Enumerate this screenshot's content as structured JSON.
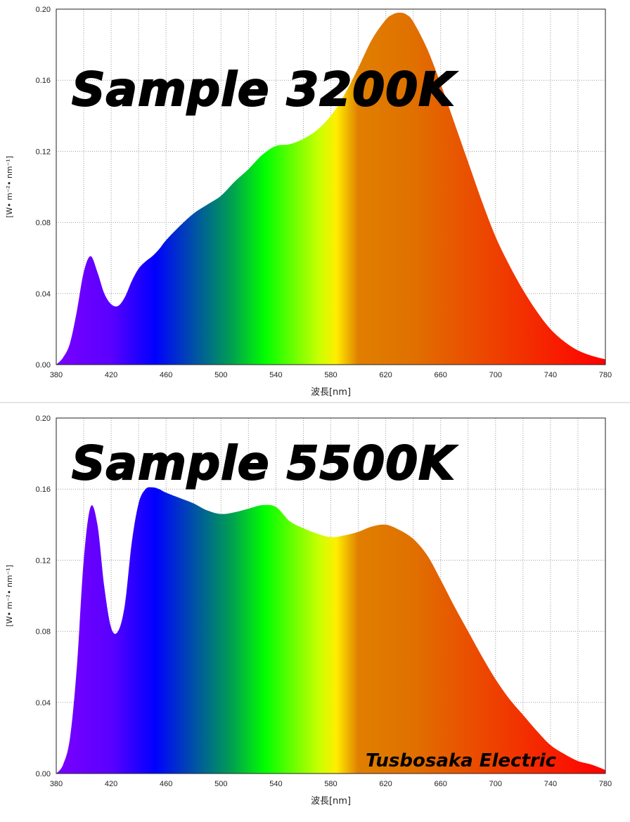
{
  "chart_data": [
    {
      "type": "area",
      "title": "Sample 3200K",
      "xlabel": "波長[nm]",
      "ylabel": "[W• m⁻²• nm⁻¹]",
      "xlim": [
        380,
        780
      ],
      "ylim": [
        0,
        0.2
      ],
      "x_ticks": [
        "380",
        "420",
        "460",
        "500",
        "540",
        "580",
        "620",
        "660",
        "700",
        "740",
        "780"
      ],
      "y_ticks": [
        "0.00",
        "0.04",
        "0.08",
        "0.12",
        "0.16",
        "0.20"
      ],
      "grid": true,
      "fill": "visible-spectrum-gradient",
      "x": [
        380,
        385,
        390,
        395,
        400,
        405,
        410,
        415,
        420,
        425,
        430,
        435,
        440,
        445,
        450,
        455,
        460,
        470,
        480,
        490,
        500,
        510,
        520,
        530,
        540,
        550,
        560,
        570,
        580,
        590,
        600,
        610,
        620,
        625,
        630,
        635,
        640,
        650,
        660,
        670,
        680,
        690,
        700,
        710,
        720,
        730,
        740,
        750,
        760,
        770,
        780
      ],
      "values": [
        0.0,
        0.004,
        0.012,
        0.03,
        0.052,
        0.061,
        0.052,
        0.04,
        0.034,
        0.033,
        0.038,
        0.047,
        0.054,
        0.058,
        0.061,
        0.065,
        0.07,
        0.078,
        0.085,
        0.09,
        0.095,
        0.103,
        0.11,
        0.118,
        0.123,
        0.124,
        0.127,
        0.132,
        0.14,
        0.152,
        0.167,
        0.183,
        0.194,
        0.197,
        0.198,
        0.197,
        0.193,
        0.178,
        0.158,
        0.136,
        0.114,
        0.092,
        0.072,
        0.056,
        0.042,
        0.03,
        0.02,
        0.013,
        0.008,
        0.005,
        0.003
      ]
    },
    {
      "type": "area",
      "title": "Sample 5500K",
      "xlabel": "波長[nm]",
      "ylabel": "[W• m⁻²• nm⁻¹]",
      "xlim": [
        380,
        780
      ],
      "ylim": [
        0,
        0.2
      ],
      "x_ticks": [
        "380",
        "420",
        "460",
        "500",
        "540",
        "580",
        "620",
        "660",
        "700",
        "740",
        "780"
      ],
      "y_ticks": [
        "0.00",
        "0.04",
        "0.08",
        "0.12",
        "0.16",
        "0.20"
      ],
      "grid": true,
      "fill": "visible-spectrum-gradient",
      "annotation": "Tusbosaka Electric",
      "x": [
        380,
        385,
        390,
        395,
        400,
        405,
        410,
        415,
        420,
        425,
        430,
        435,
        440,
        445,
        450,
        455,
        460,
        470,
        480,
        490,
        500,
        510,
        520,
        530,
        540,
        550,
        560,
        570,
        580,
        590,
        600,
        610,
        620,
        630,
        640,
        650,
        660,
        670,
        680,
        690,
        700,
        710,
        720,
        730,
        740,
        750,
        760,
        770,
        780
      ],
      "values": [
        0.0,
        0.005,
        0.02,
        0.06,
        0.12,
        0.15,
        0.14,
        0.105,
        0.082,
        0.08,
        0.095,
        0.13,
        0.152,
        0.16,
        0.161,
        0.16,
        0.158,
        0.155,
        0.152,
        0.148,
        0.146,
        0.147,
        0.149,
        0.151,
        0.15,
        0.142,
        0.138,
        0.135,
        0.133,
        0.134,
        0.136,
        0.139,
        0.14,
        0.137,
        0.132,
        0.123,
        0.109,
        0.094,
        0.08,
        0.066,
        0.053,
        0.042,
        0.033,
        0.024,
        0.016,
        0.011,
        0.007,
        0.005,
        0.002
      ]
    }
  ]
}
